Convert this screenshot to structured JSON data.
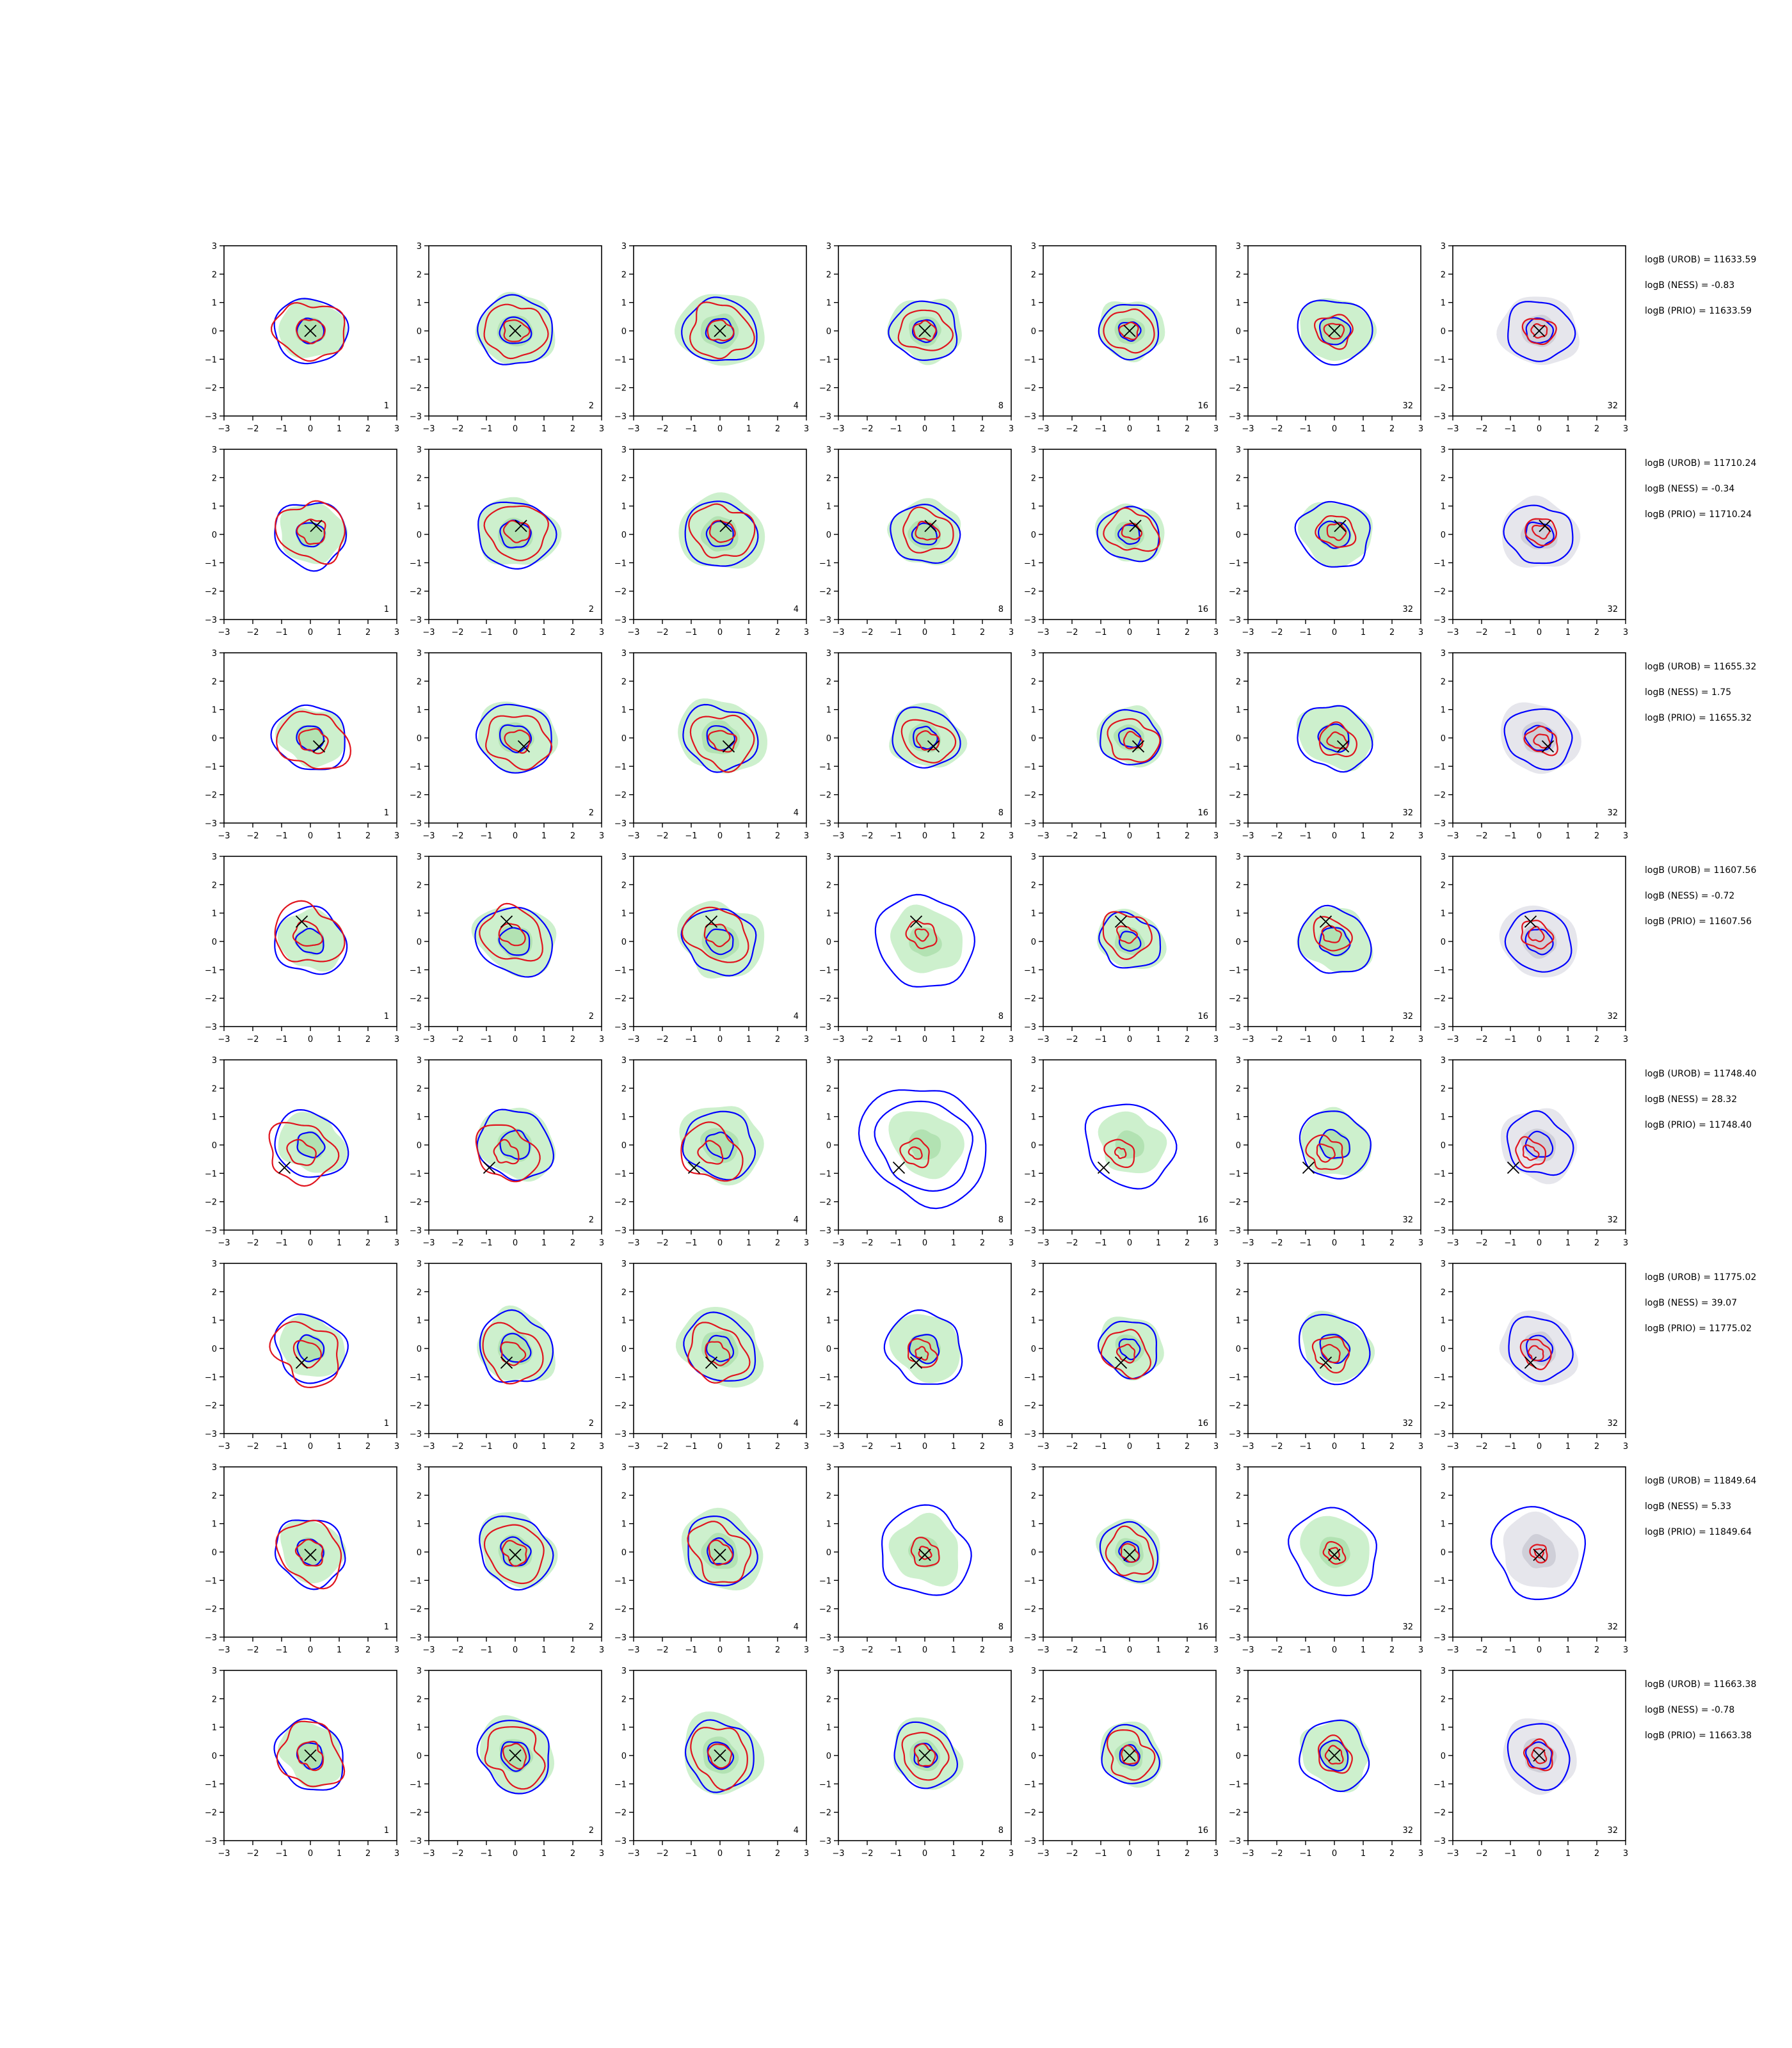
{
  "figure": {
    "description_free": true
  },
  "chart_data": {
    "type": "contour-grid",
    "rows": 8,
    "cols": 7,
    "xlim": [
      -3,
      3
    ],
    "ylim": [
      -3,
      3
    ],
    "xticks": [
      -3,
      -2,
      -1,
      0,
      1,
      2,
      3
    ],
    "yticks": [
      -3,
      -2,
      -1,
      0,
      1,
      2,
      3
    ],
    "tick_labels": [
      "−3",
      "−2",
      "−1",
      "0",
      "1",
      "2",
      "3"
    ],
    "panel_labels": [
      "1",
      "2",
      "4",
      "8",
      "16",
      "32",
      "32"
    ],
    "colors": {
      "blue": "#0000ff",
      "red": "#e0141e",
      "fill_green": "#cdf0cd",
      "fill_green_dark": "#b2e2b2",
      "fill_grey": "#e6e6ec",
      "fill_grey_dark": "#cfcfd8",
      "marker": "#000000"
    },
    "row_stats": [
      {
        "urob": "logB (UROB) = 11633.59",
        "ness": "logB (NESS) = -0.83",
        "prio": "logB (PRIO) = 11633.59"
      },
      {
        "urob": "logB (UROB) = 11710.24",
        "ness": "logB (NESS) = -0.34",
        "prio": "logB (PRIO) = 11710.24"
      },
      {
        "urob": "logB (UROB) = 11655.32",
        "ness": "logB (NESS) = 1.75",
        "prio": "logB (PRIO) = 11655.32"
      },
      {
        "urob": "logB (UROB) = 11607.56",
        "ness": "logB (NESS) = -0.72",
        "prio": "logB (PRIO) = 11607.56"
      },
      {
        "urob": "logB (UROB) = 11748.40",
        "ness": "logB (NESS) = 28.32",
        "prio": "logB (PRIO) = 11748.40"
      },
      {
        "urob": "logB (UROB) = 11775.02",
        "ness": "logB (NESS) = 39.07",
        "prio": "logB (PRIO) = 11775.02"
      },
      {
        "urob": "logB (UROB) = 11849.64",
        "ness": "logB (NESS) = 5.33",
        "prio": "logB (PRIO) = 11849.64"
      },
      {
        "urob": "logB (UROB) = 11663.38",
        "ness": "logB (NESS) = -0.78",
        "prio": "logB (PRIO) = 11663.38"
      }
    ],
    "markers": [
      [
        0,
        0
      ],
      [
        0.2,
        0.3
      ],
      [
        0.3,
        -0.3
      ],
      [
        -0.3,
        0.7
      ],
      [
        -0.9,
        -0.8
      ],
      [
        -0.3,
        -0.5
      ],
      [
        0,
        -0.1
      ],
      [
        0,
        0
      ]
    ],
    "column_contours": [
      {
        "blue": [
          1.2,
          0.45
        ],
        "red": [
          1.1,
          0.45
        ],
        "green": 1.1,
        "grey": 0
      },
      {
        "blue": [
          1.25,
          0.5
        ],
        "red": [
          1.0,
          0.4
        ],
        "green": 1.3,
        "grey": 0
      },
      {
        "blue": [
          1.2,
          0.45
        ],
        "red": [
          1.0,
          0.4
        ],
        "green": 1.4,
        "grey": 0
      },
      {
        "blue": [
          1.1,
          0.4
        ],
        "red": [
          0.8,
          0.35
        ],
        "green": 1.2,
        "grey": 0
      },
      {
        "blue": [
          1.0,
          0.35
        ],
        "red": [
          0.8,
          0.3
        ],
        "green": 1.1,
        "grey": 0
      },
      {
        "blue": [
          1.2,
          0.5
        ],
        "red": [
          0.6,
          0.3
        ],
        "green": 1.2,
        "grey": 0
      },
      {
        "blue": [
          1.1,
          0.45
        ],
        "red": [
          0.5,
          0.25
        ],
        "green": 0,
        "grey": 1.3
      }
    ],
    "special_rings": [
      {
        "row": 3,
        "col": 3,
        "blue": [
          1.65
        ]
      },
      {
        "row": 4,
        "col": 3,
        "blue": [
          2.1,
          1.6
        ]
      },
      {
        "row": 4,
        "col": 4,
        "blue": [
          1.5
        ]
      },
      {
        "row": 5,
        "col": 3,
        "blue": [
          1.3,
          0.5
        ]
      },
      {
        "row": 6,
        "col": 3,
        "blue": [
          1.55
        ]
      },
      {
        "row": 6,
        "col": 5,
        "blue": [
          1.5
        ]
      },
      {
        "row": 6,
        "col": 6,
        "blue": [
          1.6
        ]
      }
    ]
  }
}
